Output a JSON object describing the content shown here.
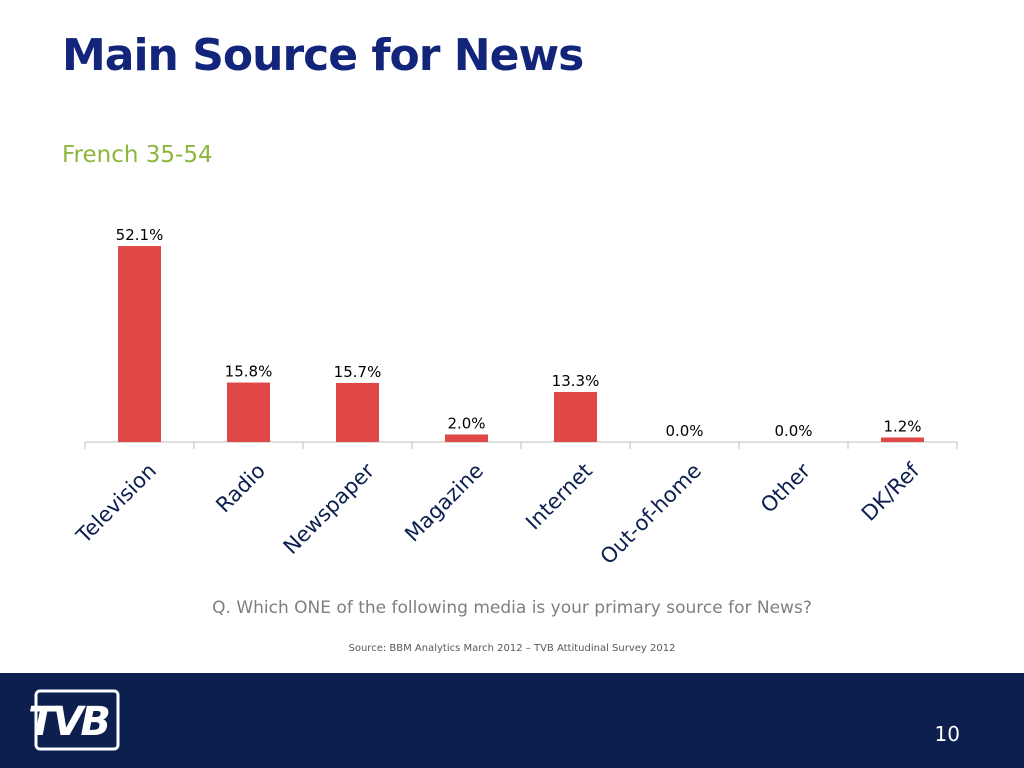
{
  "slide": {
    "title": "Main Source for News",
    "subtitle": "French 35-54",
    "question": "Q. Which ONE of the following media is your primary source for News?",
    "source": "Source: BBM Analytics March 2012 – TVB Attitudinal Survey 2012",
    "page_number": "10",
    "logo_text": "TVB"
  },
  "colors": {
    "title": "#13257a",
    "subtitle": "#8db63c",
    "bar": "#e04747",
    "footer": "#0d1f4f"
  },
  "chart_data": {
    "type": "bar",
    "categories": [
      "Television",
      "Radio",
      "Newspaper",
      "Magazine",
      "Internet",
      "Out-of-home",
      "Other",
      "DK/Ref"
    ],
    "values": [
      52.1,
      15.8,
      15.7,
      2.0,
      13.3,
      0.0,
      0.0,
      1.2
    ],
    "data_labels": [
      "52.1%",
      "15.8%",
      "15.7%",
      "2.0%",
      "13.3%",
      "0.0%",
      "0.0%",
      "1.2%"
    ],
    "title": "",
    "xlabel": "",
    "ylabel": "",
    "grid": false,
    "legend": "none"
  }
}
